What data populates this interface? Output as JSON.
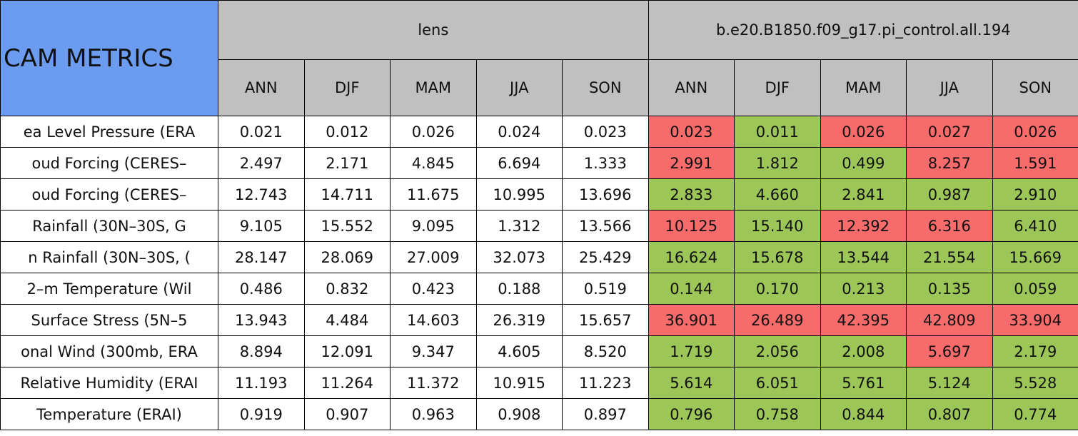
{
  "header": {
    "title": "CAM METRICS"
  },
  "groups": [
    {
      "name": "lens",
      "seasons": [
        "ANN",
        "DJF",
        "MAM",
        "JJA",
        "SON"
      ]
    },
    {
      "name": "b.e20.B1850.f09_g17.pi_control.all.194",
      "seasons": [
        "ANN",
        "DJF",
        "MAM",
        "JJA",
        "SON"
      ]
    }
  ],
  "colors": {
    "white": "#ffffff",
    "red": "#f76b6b",
    "green": "#9cc658"
  },
  "rows": [
    {
      "label": "ea Level Pressure (ERA",
      "cells": [
        "0.021",
        "0.012",
        "0.026",
        "0.024",
        "0.023",
        "0.023",
        "0.011",
        "0.026",
        "0.027",
        "0.026"
      ],
      "status": [
        "white",
        "white",
        "white",
        "white",
        "white",
        "red",
        "green",
        "red",
        "red",
        "red"
      ]
    },
    {
      "label": "oud Forcing (CERES–",
      "cells": [
        "2.497",
        "2.171",
        "4.845",
        "6.694",
        "1.333",
        "2.991",
        "1.812",
        "0.499",
        "8.257",
        "1.591"
      ],
      "status": [
        "white",
        "white",
        "white",
        "white",
        "white",
        "red",
        "green",
        "green",
        "red",
        "red"
      ]
    },
    {
      "label": "oud Forcing (CERES–",
      "cells": [
        "12.743",
        "14.711",
        "11.675",
        "10.995",
        "13.696",
        "2.833",
        "4.660",
        "2.841",
        "0.987",
        "2.910"
      ],
      "status": [
        "white",
        "white",
        "white",
        "white",
        "white",
        "green",
        "green",
        "green",
        "green",
        "green"
      ]
    },
    {
      "label": "Rainfall (30N–30S, G",
      "cells": [
        "9.105",
        "15.552",
        "9.095",
        "1.312",
        "13.566",
        "10.125",
        "15.140",
        "12.392",
        "6.316",
        "6.410"
      ],
      "status": [
        "white",
        "white",
        "white",
        "white",
        "white",
        "red",
        "green",
        "red",
        "red",
        "green"
      ]
    },
    {
      "label": "n Rainfall (30N–30S, (",
      "cells": [
        "28.147",
        "28.069",
        "27.009",
        "32.073",
        "25.429",
        "16.624",
        "15.678",
        "13.544",
        "21.554",
        "15.669"
      ],
      "status": [
        "white",
        "white",
        "white",
        "white",
        "white",
        "green",
        "green",
        "green",
        "green",
        "green"
      ]
    },
    {
      "label": "2–m Temperature (Wil",
      "cells": [
        "0.486",
        "0.832",
        "0.423",
        "0.188",
        "0.519",
        "0.144",
        "0.170",
        "0.213",
        "0.135",
        "0.059"
      ],
      "status": [
        "white",
        "white",
        "white",
        "white",
        "white",
        "green",
        "green",
        "green",
        "green",
        "green"
      ]
    },
    {
      "label": "Surface Stress (5N–5",
      "cells": [
        "13.943",
        "4.484",
        "14.603",
        "26.319",
        "15.657",
        "36.901",
        "26.489",
        "42.395",
        "42.809",
        "33.904"
      ],
      "status": [
        "white",
        "white",
        "white",
        "white",
        "white",
        "red",
        "red",
        "red",
        "red",
        "red"
      ]
    },
    {
      "label": "onal Wind (300mb, ERA",
      "cells": [
        "8.894",
        "12.091",
        "9.347",
        "4.605",
        "8.520",
        "1.719",
        "2.056",
        "2.008",
        "5.697",
        "2.179"
      ],
      "status": [
        "white",
        "white",
        "white",
        "white",
        "white",
        "green",
        "green",
        "green",
        "red",
        "green"
      ]
    },
    {
      "label": "Relative Humidity (ERAI",
      "cells": [
        "11.193",
        "11.264",
        "11.372",
        "10.915",
        "11.223",
        "5.614",
        "6.051",
        "5.761",
        "5.124",
        "5.528"
      ],
      "status": [
        "white",
        "white",
        "white",
        "white",
        "white",
        "green",
        "green",
        "green",
        "green",
        "green"
      ]
    },
    {
      "label": "Temperature (ERAI)",
      "cells": [
        "0.919",
        "0.907",
        "0.963",
        "0.908",
        "0.897",
        "0.796",
        "0.758",
        "0.844",
        "0.807",
        "0.774"
      ],
      "status": [
        "white",
        "white",
        "white",
        "white",
        "white",
        "green",
        "green",
        "green",
        "green",
        "green"
      ]
    }
  ]
}
